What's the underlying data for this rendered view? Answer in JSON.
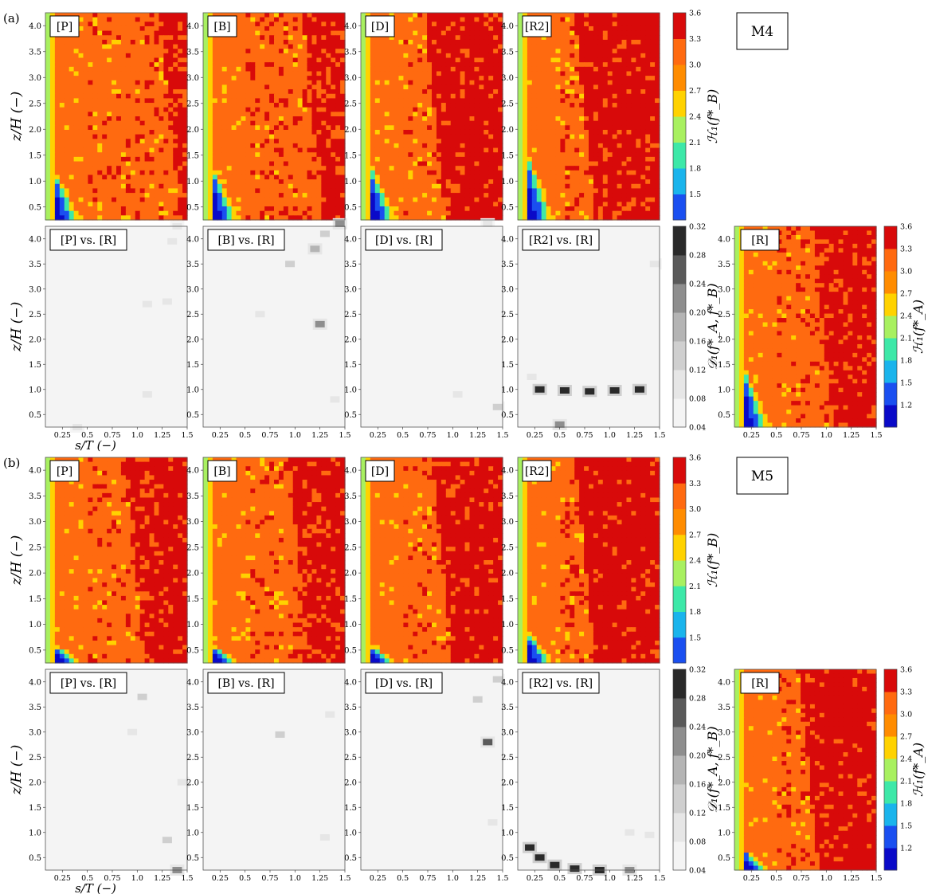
{
  "figure": {
    "panels": [
      {
        "label": "(a)",
        "model": "M4",
        "rows": [
          {
            "kind": "entropy",
            "y_axis_label": "z/H   (−)",
            "colorbar_label": "ℋ₁(f*_B)",
            "subplots": [
              "[P]",
              "[B]",
              "[D]",
              "[R2]"
            ]
          },
          {
            "kind": "divergence",
            "y_axis_label": "z/H   (−)",
            "colorbar_label": "𝒟₁(f*_A, f*_B)",
            "subplots": [
              "[P] vs. [R]",
              "[B] vs. [R]",
              "[D] vs. [R]",
              "[R2] vs. [R]"
            ]
          }
        ],
        "reference": {
          "label": "[R]",
          "colorbar_label": "ℋ₁(f*_A)"
        },
        "x_axis_label": "s/T   (−)"
      },
      {
        "label": "(b)",
        "model": "M5",
        "rows": [
          {
            "kind": "entropy",
            "y_axis_label": "z/H   (−)",
            "colorbar_label": "ℋ₁(f*_B)",
            "subplots": [
              "[P]",
              "[B]",
              "[D]",
              "[R2]"
            ]
          },
          {
            "kind": "divergence",
            "y_axis_label": "z/H   (−)",
            "colorbar_label": "𝒟₁(f*_A, f*_B)",
            "subplots": [
              "[P] vs. [R]",
              "[B] vs. [R]",
              "[D] vs. [R]",
              "[R2] vs. [R]"
            ]
          }
        ],
        "reference": {
          "label": "[R]",
          "colorbar_label": "ℋ₁(f*_A)"
        },
        "x_axis_label": "s/T   (−)"
      }
    ]
  },
  "chart_data": {
    "type": "heatmap",
    "x_ticks": [
      "0.25",
      "0.5",
      "0.75",
      "1.0",
      "1.25",
      "1.5"
    ],
    "y_ticks": [
      "0.5",
      "1.0",
      "1.5",
      "2.0",
      "2.5",
      "3.0",
      "3.5",
      "4.0"
    ],
    "xlim": [
      0.08,
      1.5
    ],
    "ylim": [
      0.25,
      4.25
    ],
    "entropy_colorbar": {
      "ticks_top": [
        "3.6",
        "3.3",
        "3.0",
        "2.7",
        "2.4",
        "2.1",
        "1.8",
        "1.5"
      ],
      "ticks_full": [
        "3.6",
        "3.3",
        "3.0",
        "2.7",
        "2.4",
        "2.1",
        "1.8",
        "1.5",
        "1.2"
      ],
      "range": [
        1.2,
        3.6
      ],
      "colors": [
        "#0a0ac8",
        "#1a4ff0",
        "#1ab4ec",
        "#3de8a8",
        "#a8f060",
        "#ffd200",
        "#ff8c00",
        "#ff6a10",
        "#d80a0a"
      ]
    },
    "divergence_colorbar": {
      "ticks": [
        "0.32",
        "0.28",
        "0.24",
        "0.20",
        "0.16",
        "0.12",
        "0.08",
        "0.04"
      ],
      "range": [
        0.04,
        0.32
      ],
      "colors": [
        "#f4f4f4",
        "#e6e6e6",
        "#cfcfcf",
        "#b4b4b4",
        "#8e8e8e",
        "#5a5a5a",
        "#2a2a2a"
      ]
    },
    "entropy_profiles": {
      "a": {
        "P": {
          "edge": 0.26,
          "dark_start": 0.95,
          "dark_frac": 0.25
        },
        "B": {
          "edge": 0.3,
          "dark_start": 0.85,
          "dark_frac": 0.3
        },
        "D": {
          "edge": 0.32,
          "dark_start": 0.6,
          "dark_frac": 0.5
        },
        "R2": {
          "edge": 0.38,
          "dark_start": 0.55,
          "dark_frac": 0.45
        },
        "R": {
          "edge": 0.35,
          "dark_start": 0.7,
          "dark_frac": 0.4
        }
      },
      "b": {
        "P": {
          "edge": 0.1,
          "dark_start": 0.7,
          "dark_frac": 0.45
        },
        "B": {
          "edge": 0.1,
          "dark_start": 0.75,
          "dark_frac": 0.4
        },
        "D": {
          "edge": 0.1,
          "dark_start": 0.65,
          "dark_frac": 0.5
        },
        "R2": {
          "edge": 0.18,
          "dark_start": 0.55,
          "dark_frac": 0.6
        },
        "R": {
          "edge": 0.12,
          "dark_start": 0.6,
          "dark_frac": 0.55
        }
      }
    },
    "divergence_spots": {
      "a": {
        "P": [
          [
            1.4,
            4.25,
            0.08
          ],
          [
            1.35,
            3.95,
            0.12
          ],
          [
            1.1,
            2.7,
            0.1
          ],
          [
            1.3,
            2.75,
            0.1
          ],
          [
            1.1,
            0.9,
            0.08
          ],
          [
            0.4,
            0.25,
            0.1
          ]
        ],
        "B": [
          [
            1.45,
            4.3,
            0.22
          ],
          [
            1.3,
            4.1,
            0.16
          ],
          [
            1.2,
            3.8,
            0.18
          ],
          [
            0.95,
            3.5,
            0.14
          ],
          [
            1.25,
            2.3,
            0.2
          ],
          [
            0.65,
            2.5,
            0.12
          ],
          [
            1.4,
            0.8,
            0.1
          ]
        ],
        "D": [
          [
            1.45,
            0.65,
            0.14
          ],
          [
            1.35,
            4.3,
            0.08
          ],
          [
            1.05,
            0.9,
            0.08
          ]
        ],
        "R2": [
          [
            0.3,
            1.0,
            0.32
          ],
          [
            0.55,
            0.98,
            0.3
          ],
          [
            0.8,
            0.96,
            0.3
          ],
          [
            1.05,
            0.98,
            0.3
          ],
          [
            1.3,
            1.0,
            0.3
          ],
          [
            0.5,
            0.3,
            0.24
          ],
          [
            0.22,
            1.25,
            0.12
          ],
          [
            1.45,
            3.5,
            0.1
          ]
        ]
      },
      "b": {
        "P": [
          [
            1.05,
            3.7,
            0.14
          ],
          [
            0.95,
            3.0,
            0.1
          ],
          [
            1.3,
            0.85,
            0.16
          ],
          [
            1.4,
            0.25,
            0.22
          ],
          [
            1.45,
            2.0,
            0.12
          ]
        ],
        "B": [
          [
            0.85,
            2.95,
            0.14
          ],
          [
            1.35,
            3.35,
            0.1
          ],
          [
            1.3,
            0.9,
            0.1
          ]
        ],
        "D": [
          [
            1.35,
            2.8,
            0.26
          ],
          [
            1.25,
            3.65,
            0.14
          ],
          [
            1.45,
            4.05,
            0.14
          ],
          [
            1.4,
            1.2,
            0.1
          ]
        ],
        "R2": [
          [
            0.2,
            0.7,
            0.3
          ],
          [
            0.3,
            0.5,
            0.32
          ],
          [
            0.45,
            0.35,
            0.32
          ],
          [
            0.65,
            0.28,
            0.3
          ],
          [
            0.9,
            0.25,
            0.28
          ],
          [
            1.2,
            0.25,
            0.24
          ],
          [
            1.2,
            1.0,
            0.1
          ],
          [
            1.4,
            0.95,
            0.1
          ]
        ]
      }
    }
  }
}
